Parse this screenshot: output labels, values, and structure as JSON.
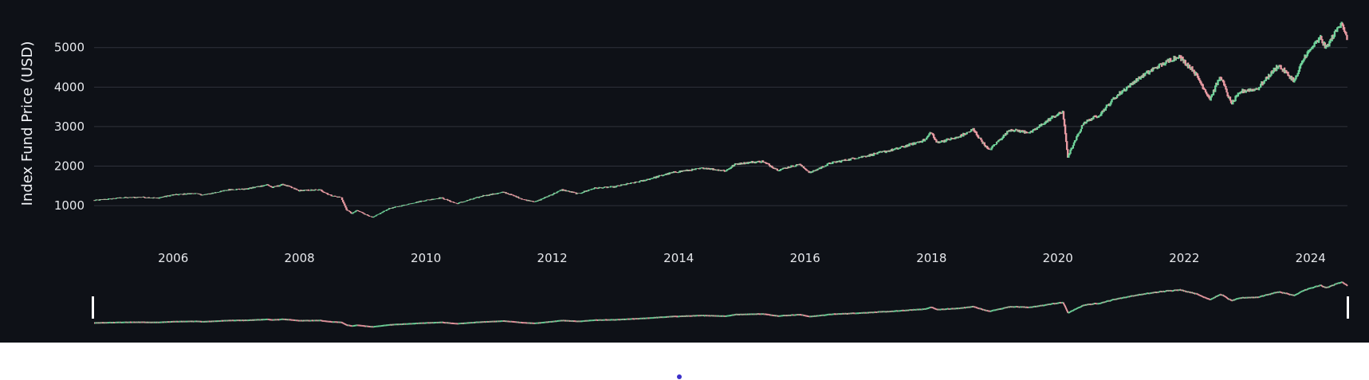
{
  "chart_data": {
    "type": "candlestick",
    "title": "",
    "xlabel": "",
    "ylabel": "Index Fund Price (USD)",
    "xlim": [
      "2004-10-01",
      "2024-08-01"
    ],
    "ylim": [
      560,
      5800
    ],
    "x_ticks": [
      "2006",
      "2008",
      "2010",
      "2012",
      "2014",
      "2016",
      "2018",
      "2020",
      "2022",
      "2024"
    ],
    "y_ticks": [
      "1000",
      "2000",
      "3000",
      "4000",
      "5000"
    ],
    "grid": true,
    "legend": "none",
    "rangeslider": true,
    "colors": {
      "background": "#0e1117",
      "grid": "#2e323b",
      "increasing": "#6fd39a",
      "decreasing": "#e89aa2",
      "text": "#e6e8ec"
    },
    "series": [
      {
        "values": [
          [
            "2004-10-01",
            1130
          ],
          [
            "2005-03-01",
            1195
          ],
          [
            "2005-07-01",
            1215
          ],
          [
            "2005-10-01",
            1190
          ],
          [
            "2006-01-01",
            1270
          ],
          [
            "2006-05-01",
            1310
          ],
          [
            "2006-07-01",
            1270
          ],
          [
            "2006-12-01",
            1410
          ],
          [
            "2007-03-01",
            1420
          ],
          [
            "2007-07-01",
            1530
          ],
          [
            "2007-08-01",
            1460
          ],
          [
            "2007-10-01",
            1540
          ],
          [
            "2008-01-01",
            1380
          ],
          [
            "2008-05-01",
            1400
          ],
          [
            "2008-07-01",
            1260
          ],
          [
            "2008-09-01",
            1200
          ],
          [
            "2008-10-01",
            900
          ],
          [
            "2008-11-01",
            800
          ],
          [
            "2008-12-01",
            880
          ],
          [
            "2009-03-01",
            700
          ],
          [
            "2009-06-01",
            920
          ],
          [
            "2009-12-01",
            1110
          ],
          [
            "2010-04-01",
            1200
          ],
          [
            "2010-07-01",
            1050
          ],
          [
            "2010-12-01",
            1250
          ],
          [
            "2011-04-01",
            1340
          ],
          [
            "2011-08-01",
            1140
          ],
          [
            "2011-10-01",
            1100
          ],
          [
            "2012-03-01",
            1400
          ],
          [
            "2012-06-01",
            1300
          ],
          [
            "2012-09-01",
            1440
          ],
          [
            "2013-01-01",
            1480
          ],
          [
            "2013-06-01",
            1620
          ],
          [
            "2013-12-01",
            1840
          ],
          [
            "2014-06-01",
            1950
          ],
          [
            "2014-10-01",
            1880
          ],
          [
            "2014-12-01",
            2060
          ],
          [
            "2015-05-01",
            2120
          ],
          [
            "2015-08-01",
            1900
          ],
          [
            "2015-12-01",
            2050
          ],
          [
            "2016-02-01",
            1830
          ],
          [
            "2016-06-01",
            2080
          ],
          [
            "2016-12-01",
            2240
          ],
          [
            "2017-06-01",
            2420
          ],
          [
            "2017-12-01",
            2670
          ],
          [
            "2018-01-01",
            2870
          ],
          [
            "2018-02-01",
            2600
          ],
          [
            "2018-06-01",
            2720
          ],
          [
            "2018-09-01",
            2920
          ],
          [
            "2018-12-01",
            2400
          ],
          [
            "2019-04-01",
            2920
          ],
          [
            "2019-08-01",
            2850
          ],
          [
            "2019-12-01",
            3230
          ],
          [
            "2020-02-01",
            3380
          ],
          [
            "2020-03-01",
            2240
          ],
          [
            "2020-06-01",
            3100
          ],
          [
            "2020-09-01",
            3300
          ],
          [
            "2020-12-01",
            3750
          ],
          [
            "2021-04-01",
            4180
          ],
          [
            "2021-08-01",
            4520
          ],
          [
            "2021-12-01",
            4780
          ],
          [
            "2022-03-01",
            4400
          ],
          [
            "2022-06-01",
            3700
          ],
          [
            "2022-08-01",
            4280
          ],
          [
            "2022-10-01",
            3580
          ],
          [
            "2022-12-01",
            3900
          ],
          [
            "2023-03-01",
            3950
          ],
          [
            "2023-07-01",
            4550
          ],
          [
            "2023-10-01",
            4150
          ],
          [
            "2023-12-01",
            4770
          ],
          [
            "2024-03-01",
            5250
          ],
          [
            "2024-04-01",
            4980
          ],
          [
            "2024-07-01",
            5660
          ],
          [
            "2024-08-01",
            5200
          ]
        ]
      }
    ]
  }
}
